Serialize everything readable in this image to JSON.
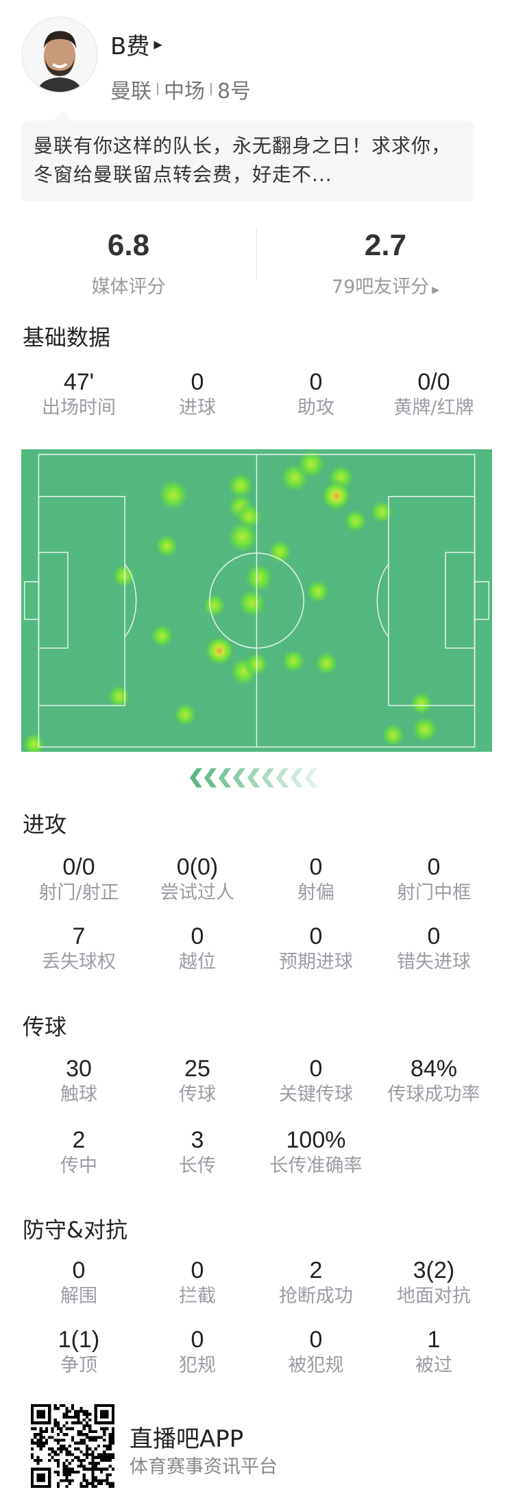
{
  "player": {
    "name": "B费",
    "team": "曼联",
    "position": "中场",
    "number": "8号",
    "comment": "曼联有你这样的队长，永无翻身之日！求求你，冬窗给曼联留点转会费，好走不..."
  },
  "ratings": {
    "media": {
      "value": "6.8",
      "label": "媒体评分"
    },
    "fans": {
      "value": "2.7",
      "label": "79吧友评分"
    }
  },
  "sections": [
    {
      "title": "基础数据",
      "stats": [
        {
          "value": "47'",
          "label": "出场时间"
        },
        {
          "value": "0",
          "label": "进球"
        },
        {
          "value": "0",
          "label": "助攻"
        },
        {
          "value": "0/0",
          "label": "黄牌/红牌"
        }
      ]
    },
    {
      "title": "进攻",
      "stats": [
        {
          "value": "0/0",
          "label": "射门/射正"
        },
        {
          "value": "0(0)",
          "label": "尝试过人"
        },
        {
          "value": "0",
          "label": "射偏"
        },
        {
          "value": "0",
          "label": "射门中框"
        },
        {
          "value": "7",
          "label": "丢失球权"
        },
        {
          "value": "0",
          "label": "越位"
        },
        {
          "value": "0",
          "label": "预期进球"
        },
        {
          "value": "0",
          "label": "错失进球"
        }
      ]
    },
    {
      "title": "传球",
      "stats": [
        {
          "value": "30",
          "label": "触球"
        },
        {
          "value": "25",
          "label": "传球"
        },
        {
          "value": "0",
          "label": "关键传球"
        },
        {
          "value": "84%",
          "label": "传球成功率"
        },
        {
          "value": "2",
          "label": "传中"
        },
        {
          "value": "3",
          "label": "长传"
        },
        {
          "value": "100%",
          "label": "长传准确率"
        }
      ]
    },
    {
      "title": "防守&对抗",
      "stats": [
        {
          "value": "0",
          "label": "解围"
        },
        {
          "value": "0",
          "label": "拦截"
        },
        {
          "value": "2",
          "label": "抢断成功"
        },
        {
          "value": "3(2)",
          "label": "地面对抗"
        },
        {
          "value": "1(1)",
          "label": "争顶"
        },
        {
          "value": "0",
          "label": "犯规"
        },
        {
          "value": "0",
          "label": "被犯规"
        },
        {
          "value": "1",
          "label": "被过"
        }
      ]
    }
  ],
  "heatmap": {
    "attack_direction": "left",
    "pitch_color": "#54b881",
    "accent": "#5cb885"
  },
  "footer": {
    "app_name": "直播吧APP",
    "tagline": "体育赛事资讯平台"
  }
}
